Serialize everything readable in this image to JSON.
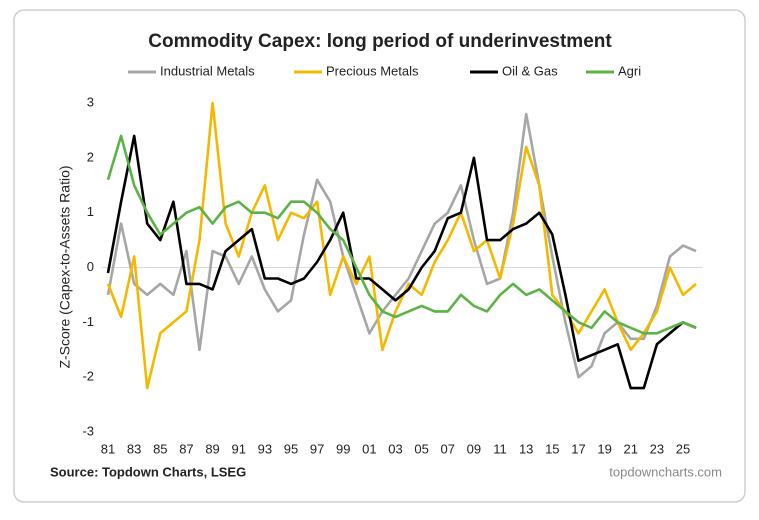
{
  "chart_data": {
    "type": "line",
    "title": "Commodity Capex: long period of underinvestment",
    "y_label": "Z-Score (Capex-to-Assets Ratio)",
    "source": "Source: Topdown Charts, LSEG",
    "watermark": "topdowncharts.com",
    "x": [
      1981,
      1982,
      1983,
      1984,
      1985,
      1986,
      1987,
      1988,
      1989,
      1990,
      1991,
      1992,
      1993,
      1994,
      1995,
      1996,
      1997,
      1998,
      1999,
      2000,
      2001,
      2002,
      2003,
      2004,
      2005,
      2006,
      2007,
      2008,
      2009,
      2010,
      2011,
      2012,
      2013,
      2014,
      2015,
      2016,
      2017,
      2018,
      2019,
      2020,
      2021,
      2022,
      2023,
      2024,
      2025,
      2026
    ],
    "series": [
      {
        "name": "Industrial Metals",
        "color": "#a6a6a6",
        "values": [
          -0.5,
          0.8,
          -0.3,
          -0.5,
          -0.3,
          -0.5,
          0.3,
          -1.5,
          0.3,
          0.2,
          -0.3,
          0.2,
          -0.4,
          -0.8,
          -0.6,
          0.6,
          1.6,
          1.2,
          0.2,
          -0.5,
          -1.2,
          -0.8,
          -0.5,
          -0.2,
          0.3,
          0.8,
          1.0,
          1.5,
          0.5,
          -0.3,
          -0.2,
          1.0,
          2.8,
          1.5,
          0.2,
          -1.0,
          -2.0,
          -1.8,
          -1.2,
          -1.0,
          -1.3,
          -1.3,
          -0.7,
          0.2,
          0.4,
          0.3
        ]
      },
      {
        "name": "Precious Metals",
        "color": "#f5b800",
        "values": [
          -0.3,
          -0.9,
          0.2,
          -2.2,
          -1.2,
          -1.0,
          -0.8,
          0.5,
          3.0,
          0.8,
          0.2,
          1.0,
          1.5,
          0.5,
          1.0,
          0.9,
          1.2,
          -0.5,
          0.2,
          -0.3,
          0.2,
          -1.5,
          -0.8,
          -0.3,
          -0.5,
          0.1,
          0.5,
          1.0,
          0.3,
          0.5,
          -0.2,
          0.8,
          2.2,
          1.5,
          -0.5,
          -0.8,
          -1.2,
          -0.8,
          -0.4,
          -1.0,
          -1.5,
          -1.2,
          -0.8,
          0.0,
          -0.5,
          -0.3
        ]
      },
      {
        "name": "Oil & Gas",
        "color": "#000000",
        "values": [
          -0.1,
          1.2,
          2.4,
          0.8,
          0.5,
          1.2,
          -0.3,
          -0.3,
          -0.4,
          0.3,
          0.5,
          0.7,
          -0.2,
          -0.2,
          -0.3,
          -0.2,
          0.1,
          0.5,
          1.0,
          -0.2,
          -0.2,
          -0.4,
          -0.6,
          -0.4,
          0.0,
          0.3,
          0.9,
          1.0,
          2.0,
          0.5,
          0.5,
          0.7,
          0.8,
          1.0,
          0.6,
          -0.5,
          -1.7,
          -1.6,
          -1.5,
          -1.4,
          -2.2,
          -2.2,
          -1.4,
          -1.2,
          -1.0,
          -1.1
        ]
      },
      {
        "name": "Agri",
        "color": "#5cb345",
        "values": [
          1.6,
          2.4,
          1.5,
          1.0,
          0.6,
          0.8,
          1.0,
          1.1,
          0.8,
          1.1,
          1.2,
          1.0,
          1.0,
          0.9,
          1.2,
          1.2,
          1.0,
          0.7,
          0.5,
          0.0,
          -0.5,
          -0.8,
          -0.9,
          -0.8,
          -0.7,
          -0.8,
          -0.8,
          -0.5,
          -0.7,
          -0.8,
          -0.5,
          -0.3,
          -0.5,
          -0.4,
          -0.6,
          -0.8,
          -1.0,
          -1.1,
          -0.8,
          -1.0,
          -1.1,
          -1.2,
          -1.2,
          -1.1,
          -1.0,
          -1.1
        ]
      }
    ],
    "xlim": [
      1980.5,
      2026.5
    ],
    "xticks": [
      {
        "value": 1981,
        "label": "81"
      },
      {
        "value": 1983,
        "label": "83"
      },
      {
        "value": 1985,
        "label": "85"
      },
      {
        "value": 1987,
        "label": "87"
      },
      {
        "value": 1989,
        "label": "89"
      },
      {
        "value": 1991,
        "label": "91"
      },
      {
        "value": 1993,
        "label": "93"
      },
      {
        "value": 1995,
        "label": "95"
      },
      {
        "value": 1997,
        "label": "97"
      },
      {
        "value": 1999,
        "label": "99"
      },
      {
        "value": 2001,
        "label": "01"
      },
      {
        "value": 2003,
        "label": "03"
      },
      {
        "value": 2005,
        "label": "05"
      },
      {
        "value": 2007,
        "label": "07"
      },
      {
        "value": 2009,
        "label": "09"
      },
      {
        "value": 2011,
        "label": "11"
      },
      {
        "value": 2013,
        "label": "13"
      },
      {
        "value": 2015,
        "label": "15"
      },
      {
        "value": 2017,
        "label": "17"
      },
      {
        "value": 2019,
        "label": "19"
      },
      {
        "value": 2021,
        "label": "21"
      },
      {
        "value": 2023,
        "label": "23"
      },
      {
        "value": 2025,
        "label": "25"
      }
    ],
    "ylim": [
      -3,
      3
    ],
    "yticks": [
      -3,
      -2,
      -1,
      0,
      1,
      2,
      3
    ]
  }
}
